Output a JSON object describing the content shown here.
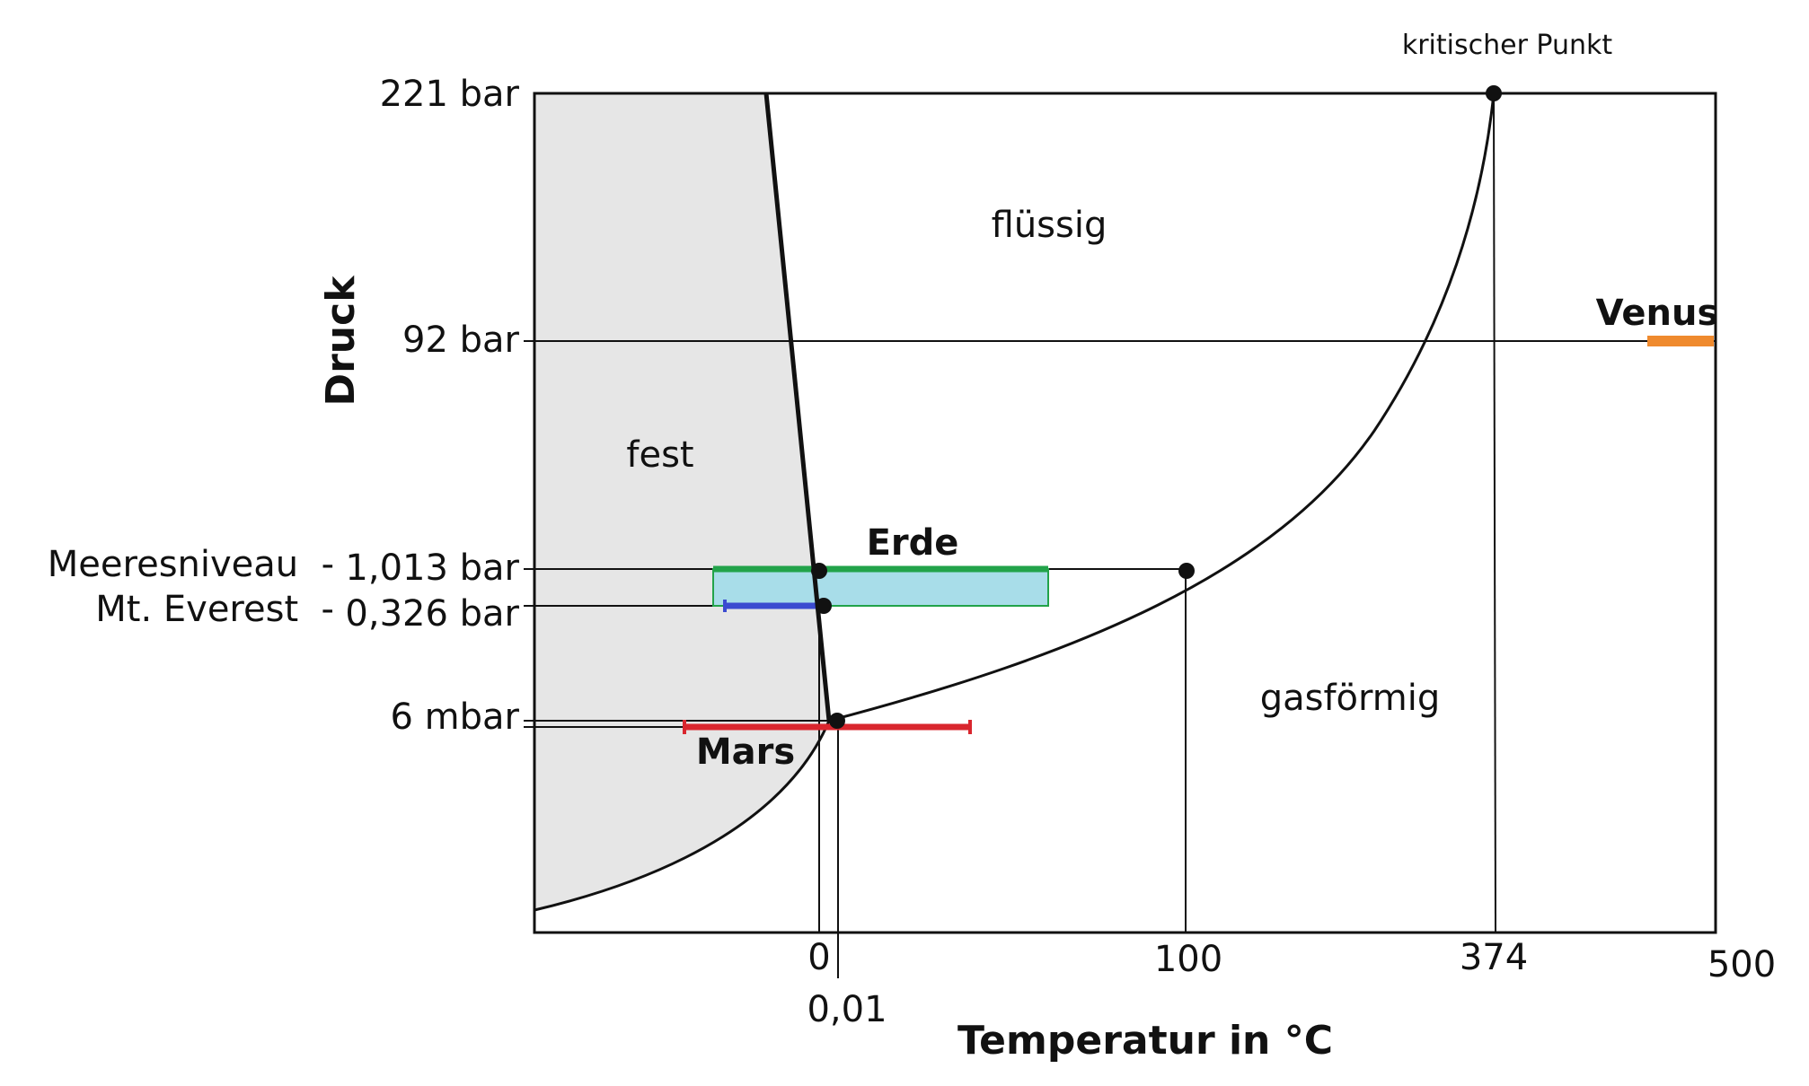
{
  "axes": {
    "ylabel": "Druck",
    "xlabel": "Temperatur in °C",
    "y_ticks": [
      "221 bar",
      "92 bar",
      "1,013 bar",
      "0,326 bar",
      "6 mbar"
    ],
    "x_ticks": [
      "0",
      "0,01",
      "100",
      "374",
      "500"
    ]
  },
  "regions": {
    "solid": "fest",
    "liquid": "flüssig",
    "gas": "gasförmig"
  },
  "annotations": {
    "critical_point": "kritischer Punkt",
    "sea_level": "Meeresniveau  -",
    "everest": "Mt. Everest  -"
  },
  "planets": {
    "earth": {
      "label": "Erde",
      "line_color": "#22a34a",
      "fill_color": "#a8dde9"
    },
    "mars": {
      "label": "Mars",
      "color": "#d9262e"
    },
    "venus": {
      "label": "Venus",
      "color": "#ef8a2e"
    },
    "everest_color": "#3b4bd0"
  },
  "colors": {
    "solid_region": "#e6e6e6",
    "line": "#111111"
  }
}
